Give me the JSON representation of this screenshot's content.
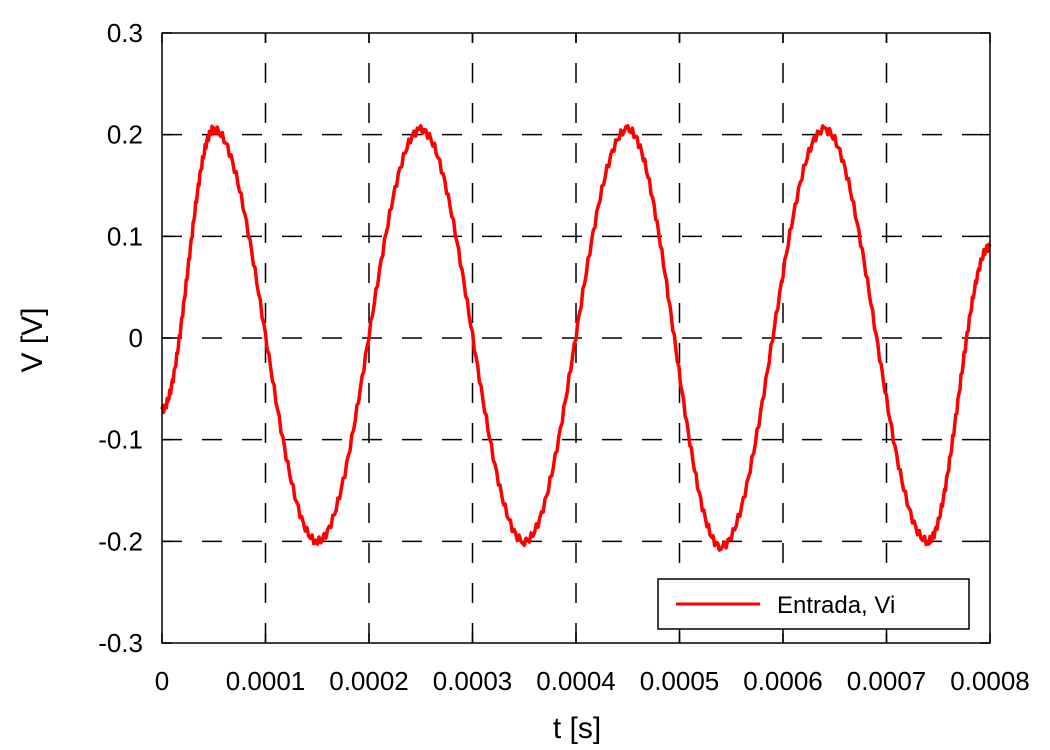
{
  "chart_data": {
    "type": "line",
    "xlabel": "t [s]",
    "ylabel": "V [V]",
    "xlim": [
      0,
      0.0008
    ],
    "ylim": [
      -0.3,
      0.3
    ],
    "xticks": [
      0,
      0.0001,
      0.0002,
      0.0003,
      0.0004,
      0.0005,
      0.0006,
      0.0007,
      0.0008
    ],
    "xtick_labels": [
      "0",
      "0.0001",
      "0.0002",
      "0.0003",
      "0.0004",
      "0.0005",
      "0.0006",
      "0.0007",
      "0.0008"
    ],
    "yticks": [
      -0.3,
      -0.2,
      -0.1,
      0,
      0.1,
      0.2,
      0.3
    ],
    "ytick_labels": [
      "-0.3",
      "-0.2",
      "-0.1",
      "0",
      "0.1",
      "0.2",
      "0.3"
    ],
    "grid": true,
    "legend_position": "bottom-right",
    "series": [
      {
        "name": "Entrada, Vi",
        "color": "#ff0000",
        "x": [
          0,
          5e-05,
          0.00015,
          0.00025,
          0.00035,
          0.00045,
          0.00054,
          0.00064,
          0.00074,
          0.0008
        ],
        "y": [
          -0.07,
          0.205,
          -0.2,
          0.205,
          -0.2,
          0.205,
          -0.205,
          0.205,
          -0.2,
          0.09
        ]
      }
    ]
  }
}
